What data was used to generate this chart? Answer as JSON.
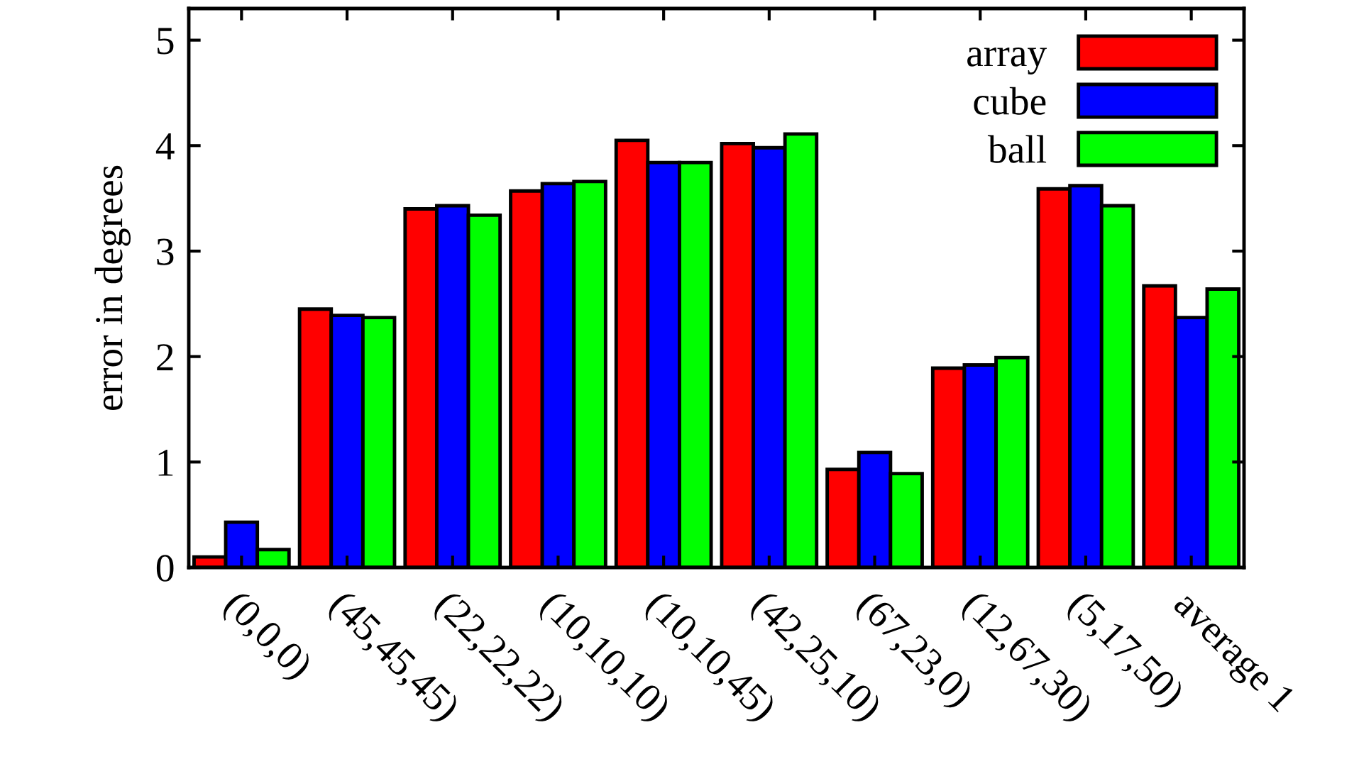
{
  "chart_data": {
    "type": "bar",
    "ylabel": "error in degrees",
    "categories": [
      "(0,0,0)",
      "(45,45,45)",
      "(22,22,22)",
      "(10,10,10)",
      "(10,10,45)",
      "(42,25,10)",
      "(67,23,0)",
      "(12,67,30)",
      "(5,17,50)",
      "average 1"
    ],
    "series": [
      {
        "name": "array",
        "color": "#ff0000",
        "values": [
          0.1,
          2.45,
          3.4,
          3.57,
          4.05,
          4.02,
          0.93,
          1.89,
          3.59,
          2.67
        ]
      },
      {
        "name": "cube",
        "color": "#0000ff",
        "values": [
          0.43,
          2.39,
          3.43,
          3.64,
          3.84,
          3.98,
          1.09,
          1.92,
          3.62,
          2.37
        ]
      },
      {
        "name": "ball",
        "color": "#00ff00",
        "values": [
          0.17,
          2.37,
          3.34,
          3.66,
          3.84,
          4.11,
          0.89,
          1.99,
          3.43,
          2.64
        ]
      }
    ],
    "ylim": [
      0,
      5.3
    ],
    "yticks": [
      0,
      1,
      2,
      3,
      4,
      5
    ],
    "grid": false,
    "legend": "top right"
  }
}
